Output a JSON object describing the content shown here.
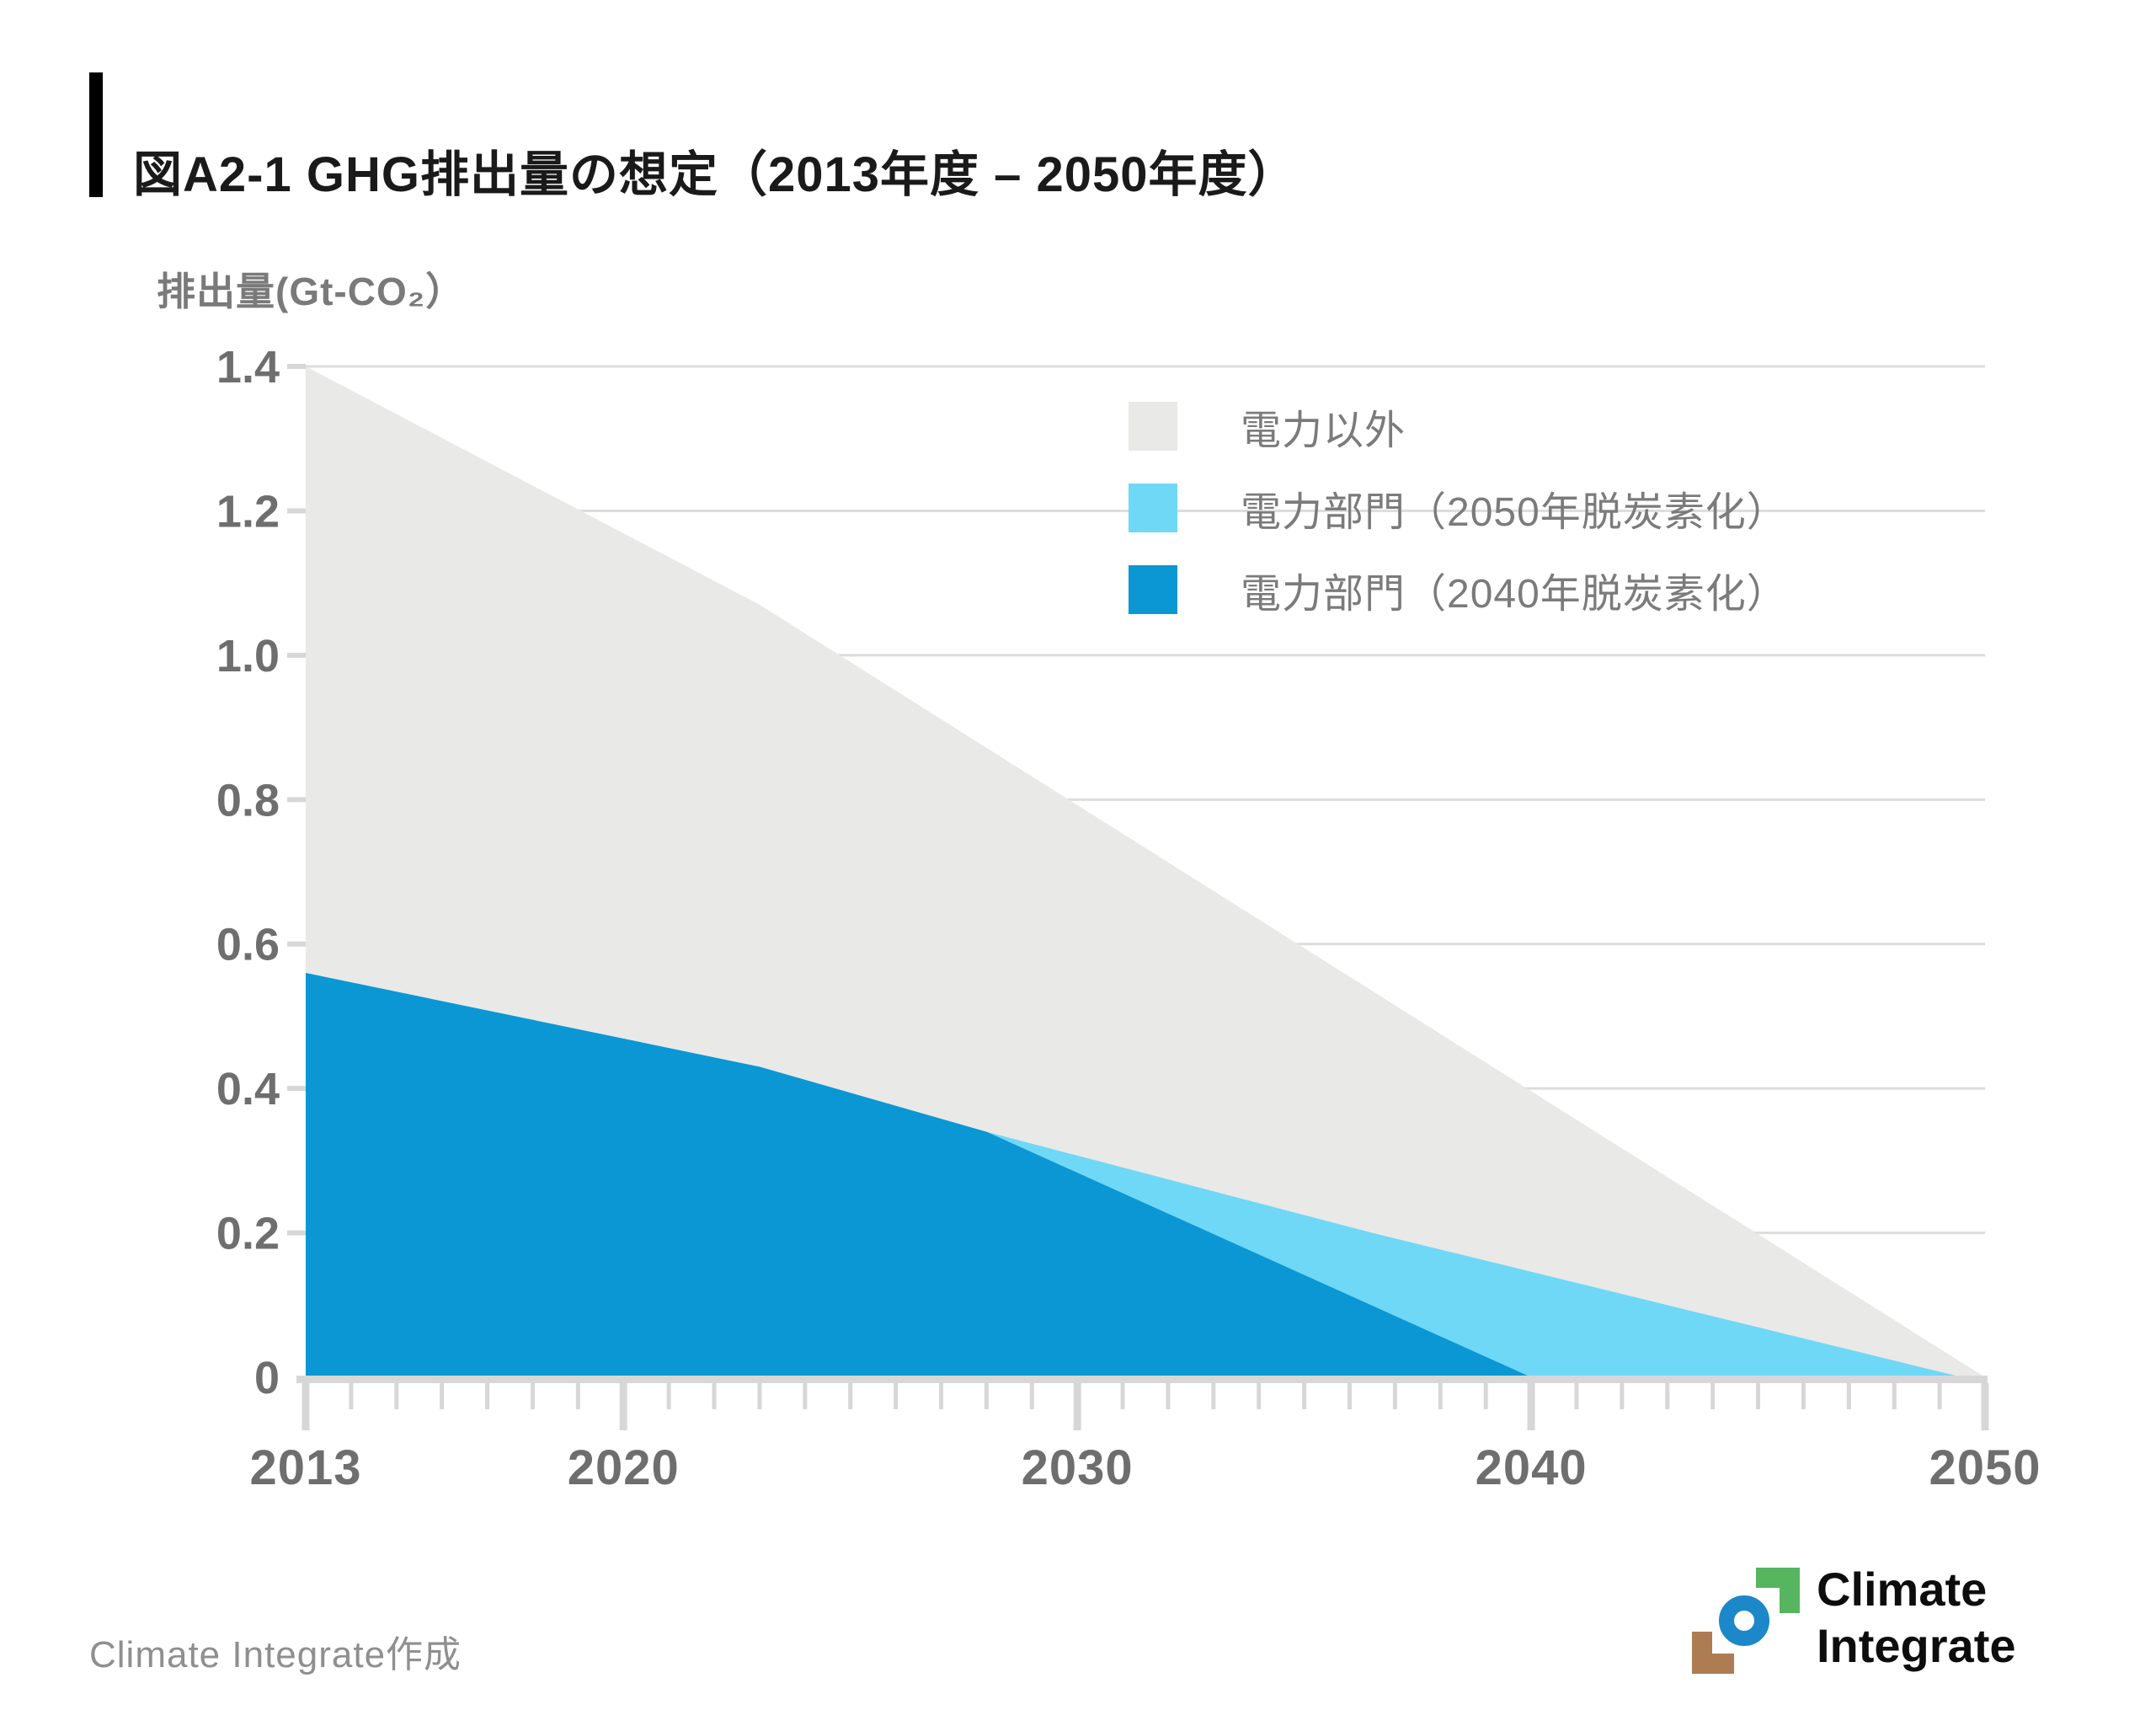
{
  "header": {
    "title": "図A2-1 GHG排出量の想定（2013年度 – 2050年度）"
  },
  "chart": {
    "y_axis_title": "排出量(Gt-CO₂）"
  },
  "chart_data": {
    "type": "area",
    "title": "図A2-1 GHG排出量の想定（2013年度 – 2050年度）",
    "ylabel": "排出量(Gt-CO₂)",
    "units": "Gt-CO2 per fiscal year",
    "x_range": [
      2013,
      2050
    ],
    "x_ticks_major": [
      2013,
      2020,
      2030,
      2040,
      2050
    ],
    "x_minor_tick_step": 1,
    "ylim": [
      0,
      1.4
    ],
    "y_ticks": [
      0,
      0.2,
      0.4,
      0.6,
      0.8,
      1.0,
      1.2,
      1.4
    ],
    "y_tick_labels": [
      "0",
      "0.2",
      "0.4",
      "0.6",
      "0.8",
      "1.0",
      "1.2",
      "1.4"
    ],
    "grid": "horizontal",
    "legend_position": "top-right-inside",
    "series": [
      {
        "name": "電力以外",
        "color": "#e9e9e8",
        "role": "total GHG emissions (non-power shown as gray band above power sector)",
        "points": [
          [
            2013,
            1.4
          ],
          [
            2023,
            1.07
          ],
          [
            2050,
            0.0
          ]
        ]
      },
      {
        "name": "電力部門（2050年脱炭素化）",
        "color": "#6fd8f6",
        "role": "power sector, decarbonized by 2050 scenario",
        "points": [
          [
            2013,
            0.56
          ],
          [
            2023,
            0.43
          ],
          [
            2028,
            0.34
          ],
          [
            2036.5,
            0.2
          ],
          [
            2049.5,
            0.0
          ]
        ]
      },
      {
        "name": "電力部門（2040年脱炭素化）",
        "color": "#0b97d3",
        "role": "power sector, decarbonized by 2040 scenario",
        "points": [
          [
            2013,
            0.56
          ],
          [
            2023,
            0.43
          ],
          [
            2028,
            0.34
          ],
          [
            2040,
            0.0
          ]
        ]
      }
    ]
  },
  "colors": {
    "axis": "#d7d7d7",
    "grid": "#dddddd",
    "tick_label": "#6e6e6e",
    "legend_text": "#7b7b7b",
    "accent_bar": "#000000",
    "title_text": "#1a1a1a",
    "credit_text": "#8f8f8f"
  },
  "footer": {
    "credit": "Climate Integrate作成"
  },
  "logo": {
    "line1": "Climate",
    "line2": "Integrate",
    "colors": {
      "green": "#57b560",
      "blue": "#1c87c9",
      "brown": "#ad7c52",
      "text": "#0d0d0d"
    }
  }
}
